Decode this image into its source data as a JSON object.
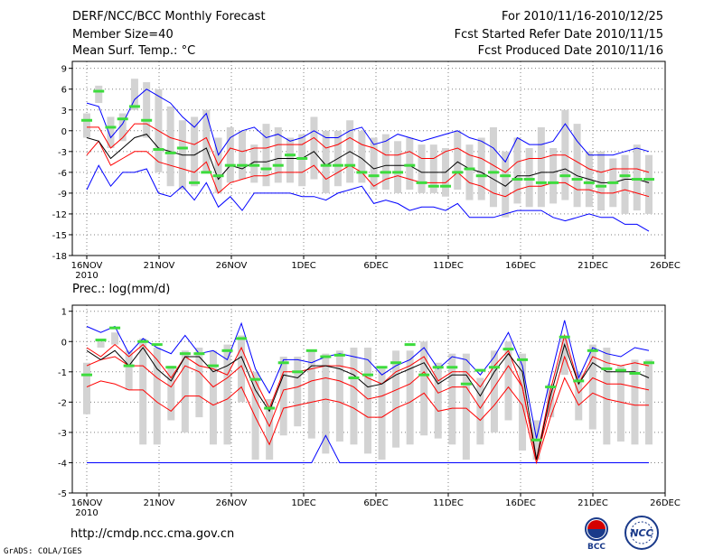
{
  "header": {
    "title": "DERF/NCC/BCC Monthly Forecast",
    "member_size": "Member Size=40",
    "variable": "Mean Surf. Temp.: °C",
    "period": "For 2010/11/16-2010/12/25",
    "started": "Fcst Started Refer Date 2010/11/15",
    "produced": "Fcst Produced Date 2010/11/16"
  },
  "footer": {
    "url": "http://cmdp.ncc.cma.gov.cn",
    "grads": "GrADS: COLA/IGES",
    "logo1_text": "BCC",
    "logo2_text": "NCC"
  },
  "colors": {
    "outer": "#0000ff",
    "inner": "#ff0000",
    "mean": "#000000",
    "box": "#d3d3d3",
    "obs": "#3ddc3d",
    "grid": "#808080"
  },
  "chart_data": [
    {
      "type": "line",
      "title": "Mean Surf. Temp.: °C",
      "xlabels": [
        "16NOV",
        "21NOV",
        "26NOV",
        "1DEC",
        "6DEC",
        "11DEC",
        "16DEC",
        "21DEC",
        "26DEC"
      ],
      "x_sublabel": "2010",
      "ylim": [
        -18,
        10
      ],
      "yticks": [
        9,
        6,
        3,
        0,
        -3,
        -6,
        -9,
        -12,
        -15,
        -18
      ],
      "series": {
        "upper_blue": [
          4,
          3.5,
          -1,
          1,
          4.5,
          6,
          5,
          4,
          2,
          0.5,
          2.5,
          -3.5,
          -1,
          0,
          0.5,
          -1,
          -0.5,
          -1.5,
          -1,
          0,
          -1,
          -1,
          0,
          0.5,
          -2,
          -1.5,
          -0.5,
          -1,
          -1.5,
          -1,
          -0.5,
          0,
          -1,
          -1.5,
          -2.5,
          -4.5,
          -1,
          -2,
          -2,
          -1.5,
          1,
          -1.5,
          -3.5,
          -3.5,
          -3.5,
          -3,
          -2.5,
          -3
        ],
        "upper_red": [
          0.5,
          0.5,
          -2.5,
          -1,
          1,
          1,
          0,
          -1,
          -1.5,
          -2,
          -1,
          -5,
          -2.5,
          -3,
          -2.5,
          -2.5,
          -2,
          -2,
          -2,
          -1,
          -2.5,
          -2,
          -1,
          -2,
          -2.5,
          -3.5,
          -3.5,
          -3,
          -4,
          -4,
          -3,
          -2.5,
          -3.5,
          -4,
          -5,
          -6,
          -4.5,
          -4,
          -4,
          -3.5,
          -3.5,
          -4.5,
          -5.5,
          -6,
          -5.5,
          -5.5,
          -5.5,
          -6
        ],
        "mean": [
          -1,
          -1.5,
          -4,
          -2.5,
          -1,
          -0.5,
          -2.5,
          -3,
          -3.5,
          -3.5,
          -2.5,
          -7,
          -5,
          -5.5,
          -4.5,
          -4.5,
          -4,
          -4,
          -4,
          -3,
          -5,
          -4,
          -3,
          -4,
          -5.5,
          -5,
          -5,
          -5,
          -6,
          -6,
          -6,
          -4.5,
          -5.5,
          -6,
          -7,
          -8,
          -6.5,
          -6.5,
          -6,
          -6,
          -5.5,
          -6.5,
          -7,
          -7.5,
          -7.5,
          -7,
          -7,
          -7.5
        ],
        "lower_red": [
          -3.5,
          -1.5,
          -5,
          -4,
          -3,
          -3,
          -4.5,
          -5,
          -5.5,
          -6,
          -4.5,
          -9,
          -7.5,
          -7,
          -6.5,
          -6.5,
          -6,
          -6,
          -6,
          -5,
          -7,
          -6,
          -5,
          -6,
          -8,
          -7,
          -6.5,
          -7,
          -7.5,
          -7.5,
          -7.5,
          -6,
          -7.5,
          -8,
          -9,
          -9.5,
          -8.5,
          -8,
          -8,
          -7.5,
          -7.5,
          -8.5,
          -8.5,
          -9,
          -9,
          -8.5,
          -9,
          -9.5
        ],
        "lower_blue": [
          -8.5,
          -5,
          -8,
          -6,
          -6,
          -5.5,
          -9,
          -9.5,
          -8,
          -10,
          -7.5,
          -11,
          -9.5,
          -11.5,
          -9,
          -9,
          -9,
          -9,
          -9.5,
          -9.5,
          -10,
          -9,
          -8.5,
          -8,
          -10.5,
          -10,
          -10.5,
          -11.5,
          -11,
          -11,
          -11.5,
          -10.5,
          -12.5,
          -12.5,
          -12.5,
          -12,
          -11.5,
          -11.5,
          -11.5,
          -12.5,
          -13,
          -12.5,
          -12,
          -12.5,
          -12.5,
          -13.5,
          -13.5,
          -14.5
        ],
        "box_top": [
          2.5,
          6.5,
          2,
          2.5,
          7.5,
          7,
          6,
          3.5,
          1.5,
          2,
          3,
          -1,
          0.5,
          0,
          -2,
          1,
          0.5,
          -1,
          -0.5,
          2,
          0,
          0,
          1.5,
          0,
          -1,
          -0.5,
          -1.5,
          -1,
          -2,
          -2,
          -2.5,
          0,
          -2,
          -1,
          0.5,
          -3,
          -1,
          -2.5,
          0.5,
          -2.5,
          3,
          1,
          -3,
          -3,
          -4,
          -3.5,
          -2,
          -3.5
        ],
        "box_bot": [
          -1,
          4,
          -2.5,
          -1.5,
          3,
          -1,
          -6,
          -8,
          -8.5,
          -8,
          -6,
          -9,
          -7.5,
          -7,
          -7.5,
          -8,
          -7.5,
          -7.5,
          -8,
          -7,
          -9,
          -8,
          -7.5,
          -7.5,
          -8.5,
          -8.5,
          -9,
          -8.5,
          -9,
          -9,
          -9.5,
          -8.5,
          -10,
          -10,
          -11,
          -12.5,
          -10.5,
          -11,
          -11,
          -10.5,
          -10,
          -11,
          -11,
          -11.5,
          -11,
          -12,
          -11.5,
          -12
        ],
        "observed": [
          1.5,
          5.7,
          0.5,
          1.7,
          3.5,
          1.5,
          -2.7,
          -3.2,
          -2.5,
          -7.5,
          -6,
          -6.5,
          -5,
          -5,
          -5,
          -5.5,
          -5,
          -3.5,
          -4,
          null,
          -5,
          -5,
          -5,
          -6,
          -6.5,
          -6,
          -6,
          -5,
          -7.5,
          -8,
          -8,
          -6,
          -5.5,
          -6.5,
          -6,
          -6.5,
          -7,
          -7,
          -7.5,
          -7.5,
          -6.5,
          -7,
          -7.5,
          -8,
          -7.5,
          -6.5,
          -7,
          -7
        ]
      }
    },
    {
      "type": "line",
      "title": "Prec.: log(mm/d)",
      "xlabels": [
        "16NOV",
        "21NOV",
        "26NOV",
        "1DEC",
        "6DEC",
        "11DEC",
        "16DEC",
        "21DEC",
        "26DEC"
      ],
      "x_sublabel": "2010",
      "ylim": [
        -5,
        1.2
      ],
      "yticks": [
        1,
        0,
        -1,
        -2,
        -3,
        -4,
        -5
      ],
      "series": {
        "upper_blue": [
          0.5,
          0.3,
          0.5,
          -0.4,
          0.1,
          -0.2,
          -0.4,
          0.2,
          -0.4,
          -0.3,
          -0.6,
          0.6,
          -0.9,
          -1.7,
          -0.6,
          -0.6,
          -0.7,
          -0.5,
          -0.4,
          -0.5,
          -0.6,
          -1.1,
          -0.8,
          -0.6,
          -0.2,
          -0.9,
          -0.5,
          -0.6,
          -1.1,
          -0.5,
          0.3,
          -0.8,
          -3.2,
          -1.2,
          0.7,
          -1.2,
          -0.2,
          -0.4,
          -0.5,
          -0.2,
          -0.3
        ],
        "upper_red": [
          -0.2,
          -0.5,
          -0.1,
          -0.5,
          -0.1,
          -0.6,
          -1.2,
          -0.5,
          -0.8,
          -0.9,
          -1.1,
          -0.2,
          -1.3,
          -2.2,
          -1.0,
          -1.0,
          -0.9,
          -0.8,
          -0.8,
          -0.9,
          -1.2,
          -1.4,
          -1.0,
          -0.8,
          -0.5,
          -1.3,
          -1.0,
          -1.0,
          -1.5,
          -0.8,
          -0.3,
          -1.5,
          -3.9,
          -1.6,
          0.2,
          -1.4,
          -0.5,
          -0.7,
          -0.8,
          -0.7,
          -0.8
        ],
        "mean": [
          -0.3,
          -0.6,
          -0.3,
          -0.8,
          -0.2,
          -0.9,
          -1.3,
          -0.5,
          -0.5,
          -1.0,
          -0.8,
          -0.5,
          -1.6,
          -2.3,
          -1.1,
          -1.2,
          -0.8,
          -0.8,
          -0.9,
          -1.1,
          -1.5,
          -1.4,
          -1.1,
          -0.9,
          -0.7,
          -1.4,
          -1.1,
          -1.1,
          -1.8,
          -1.0,
          -0.4,
          -1.0,
          -3.9,
          -1.8,
          -0.1,
          -1.4,
          -0.7,
          -1.0,
          -1.0,
          -1.0,
          -1.2
        ],
        "lower_red": [
          -0.8,
          -0.6,
          -0.5,
          -0.8,
          -0.8,
          -1.2,
          -1.5,
          -0.8,
          -1.0,
          -1.5,
          -1.2,
          -0.8,
          -1.9,
          -2.8,
          -1.6,
          -1.5,
          -1.3,
          -1.2,
          -1.3,
          -1.5,
          -1.9,
          -1.8,
          -1.6,
          -1.4,
          -1.0,
          -1.7,
          -1.5,
          -1.5,
          -2.2,
          -1.5,
          -0.8,
          -1.5,
          -3.9,
          -2.1,
          -0.5,
          -1.7,
          -1.2,
          -1.4,
          -1.4,
          -1.5,
          -1.6
        ],
        "lowest_red": [
          -1.5,
          -1.3,
          -1.4,
          -1.6,
          -1.6,
          -2.0,
          -2.3,
          -1.8,
          -1.8,
          -2.1,
          -1.9,
          -1.5,
          -2.5,
          -3.4,
          -2.2,
          -2.1,
          -2.0,
          -1.9,
          -2.0,
          -2.2,
          -2.5,
          -2.5,
          -2.2,
          -2.0,
          -1.7,
          -2.3,
          -2.2,
          -2.2,
          -2.6,
          -2.1,
          -1.5,
          -2.1,
          -4.0,
          -2.5,
          -1.2,
          -2.1,
          -1.7,
          -1.9,
          -2.0,
          -2.1,
          -2.1
        ],
        "lower_blue": [
          -4,
          -4,
          -4,
          -4,
          -4,
          -4,
          -4,
          -4,
          -4,
          -4,
          -4,
          -4,
          -4,
          -4,
          -4,
          -4,
          -4,
          -4,
          -4,
          -4,
          -4,
          -4,
          -4,
          -4,
          -4,
          -4,
          -4,
          -4,
          -4,
          -4,
          -4,
          -4,
          -4,
          -4,
          -4,
          -4,
          -4,
          -4,
          -4,
          -4,
          -4
        ],
        "lower_blue_spike": {
          "index": 17,
          "value": -3.1
        },
        "box_top": [
          -0.7,
          0.0,
          0.3,
          -0.3,
          0.1,
          -0.2,
          -0.8,
          -0.3,
          -0.2,
          -0.3,
          -0.1,
          0.2,
          -1.0,
          -1.9,
          -0.5,
          -0.5,
          -0.3,
          -0.4,
          -0.3,
          -0.2,
          -0.2,
          -0.9,
          -0.3,
          -0.3,
          0.0,
          -0.7,
          -0.4,
          -0.4,
          -1.2,
          -0.3,
          0.0,
          -0.4,
          -2.6,
          -1.4,
          0.2,
          -1.0,
          -0.1,
          -0.2,
          -0.8,
          -0.6,
          -0.6
        ],
        "box_bot": [
          -2.4,
          -0.2,
          -0.1,
          -1.6,
          -3.4,
          -3.4,
          -2.6,
          -3.0,
          -2.5,
          -3.4,
          -3.4,
          -2.0,
          -3.9,
          -3.9,
          -3.1,
          -2.8,
          -3.2,
          -3.7,
          -3.3,
          -3.4,
          -3.7,
          -3.9,
          -3.5,
          -3.4,
          -3.1,
          -3.2,
          -3.4,
          -3.9,
          -3.4,
          -3.0,
          -2.6,
          -3.6,
          -3.9,
          -2.5,
          -1.1,
          -2.6,
          -2.9,
          -3.4,
          -3.3,
          -3.4,
          -3.4
        ],
        "observed": [
          -1.1,
          0.05,
          0.45,
          -0.8,
          0.0,
          -0.1,
          -0.85,
          -0.4,
          -0.4,
          -0.8,
          -0.3,
          0.1,
          -1.25,
          -2.2,
          -0.7,
          -1.0,
          -0.3,
          -0.5,
          -0.45,
          -1.2,
          -1.1,
          -0.85,
          -0.7,
          -0.1,
          -1.1,
          -0.85,
          -0.85,
          -1.4,
          -0.95,
          -0.85,
          -0.25,
          -0.6,
          -3.25,
          -1.5,
          0.15,
          -1.3,
          -0.3,
          -0.9,
          -0.95,
          -1.05,
          -0.7
        ]
      }
    }
  ]
}
